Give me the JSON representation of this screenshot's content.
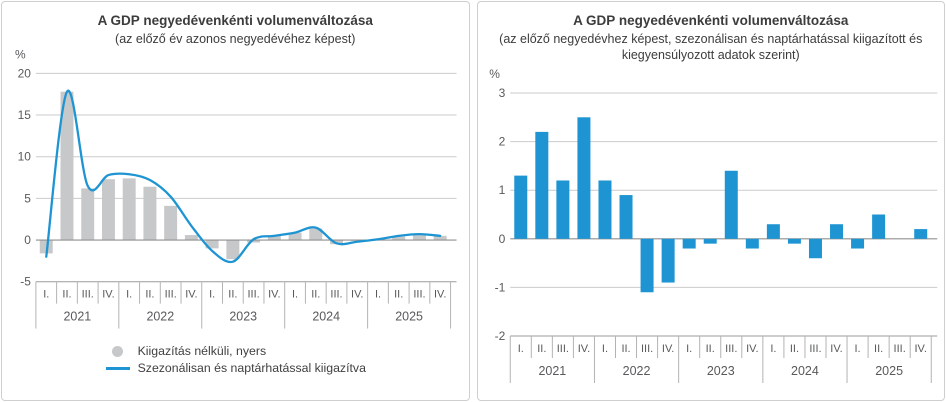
{
  "colors": {
    "accent_blue": "#1e95d2",
    "bar_raw_gray": "#c7c8ca",
    "gridline": "#cbcbcb",
    "zero_line": "#8f8f8f",
    "axis_line": "#9b9b9b",
    "separator": "#b3b3b3",
    "title_text": "#3c3c3c",
    "tick_text": "#58595b",
    "card_border": "#cfcfcf"
  },
  "chart_data": [
    {
      "type": "bar",
      "title": "A GDP negyedévenkénti volumenváltozása",
      "subtitle": "(az előző év azonos negyedévéhez képest)",
      "unit": "%",
      "ylabel": "%",
      "ylim": [
        -5,
        20
      ],
      "yticks": [
        20,
        15,
        10,
        5,
        0,
        -5
      ],
      "grid": true,
      "legend_position": "bottom",
      "years": [
        "2021",
        "2022",
        "2023",
        "2024",
        "2025"
      ],
      "quarters": [
        "I.",
        "II.",
        "III.",
        "IV."
      ],
      "categories": [
        "2021 I.",
        "2021 II.",
        "2021 III.",
        "2021 IV.",
        "2022 I.",
        "2022 II.",
        "2022 III.",
        "2022 IV.",
        "2023 I.",
        "2023 II.",
        "2023 III.",
        "2023 IV.",
        "2024 I.",
        "2024 II.",
        "2024 III.",
        "2024 IV.",
        "2025 I.",
        "2025 II.",
        "2025 III.",
        "2025 IV."
      ],
      "series": [
        {
          "name": "Kiigazítás nélküli, nyers",
          "type": "bar",
          "color": "#c7c8ca",
          "values": [
            -1.6,
            17.8,
            6.2,
            7.3,
            7.4,
            6.4,
            4.1,
            0.6,
            -1.0,
            -2.3,
            -0.3,
            0.5,
            0.9,
            1.4,
            -0.5,
            -0.1,
            0.1,
            0.4,
            0.6,
            0.5
          ]
        },
        {
          "name": "Szezonálisan és naptárhatással kiigazítva",
          "type": "line",
          "color": "#1e95d2",
          "values": [
            -2.0,
            17.8,
            6.5,
            7.8,
            7.9,
            7.2,
            5.2,
            1.7,
            -1.3,
            -2.6,
            0.1,
            0.5,
            0.9,
            1.5,
            -0.4,
            -0.2,
            0.1,
            0.5,
            0.7,
            0.5
          ]
        }
      ]
    },
    {
      "type": "bar",
      "title": "A GDP negyedévenkénti volumenváltozása",
      "subtitle": "(az előző negyedévhez képest, szezonálisan és naptárhatással kiigazított és kiegyensúlyozott adatok szerint)",
      "unit": "%",
      "ylabel": "%",
      "ylim": [
        -2,
        3
      ],
      "yticks": [
        3,
        2,
        1,
        0,
        -1,
        -2
      ],
      "grid": true,
      "legend_position": "none",
      "years": [
        "2021",
        "2022",
        "2023",
        "2024",
        "2025"
      ],
      "quarters": [
        "I.",
        "II.",
        "III.",
        "IV."
      ],
      "categories": [
        "2021 I.",
        "2021 II.",
        "2021 III.",
        "2021 IV.",
        "2022 I.",
        "2022 II.",
        "2022 III.",
        "2022 IV.",
        "2023 I.",
        "2023 II.",
        "2023 III.",
        "2023 IV.",
        "2024 I.",
        "2024 II.",
        "2024 III.",
        "2024 IV.",
        "2025 I.",
        "2025 II.",
        "2025 III.",
        "2025 IV."
      ],
      "series": [
        {
          "type": "bar",
          "color": "#1e95d2",
          "values": [
            1.3,
            2.2,
            1.2,
            2.5,
            1.2,
            0.9,
            -1.1,
            -0.9,
            -0.2,
            -0.1,
            1.4,
            -0.2,
            0.3,
            -0.1,
            -0.4,
            0.3,
            -0.2,
            0.5,
            0.0,
            0.2
          ]
        }
      ]
    }
  ]
}
